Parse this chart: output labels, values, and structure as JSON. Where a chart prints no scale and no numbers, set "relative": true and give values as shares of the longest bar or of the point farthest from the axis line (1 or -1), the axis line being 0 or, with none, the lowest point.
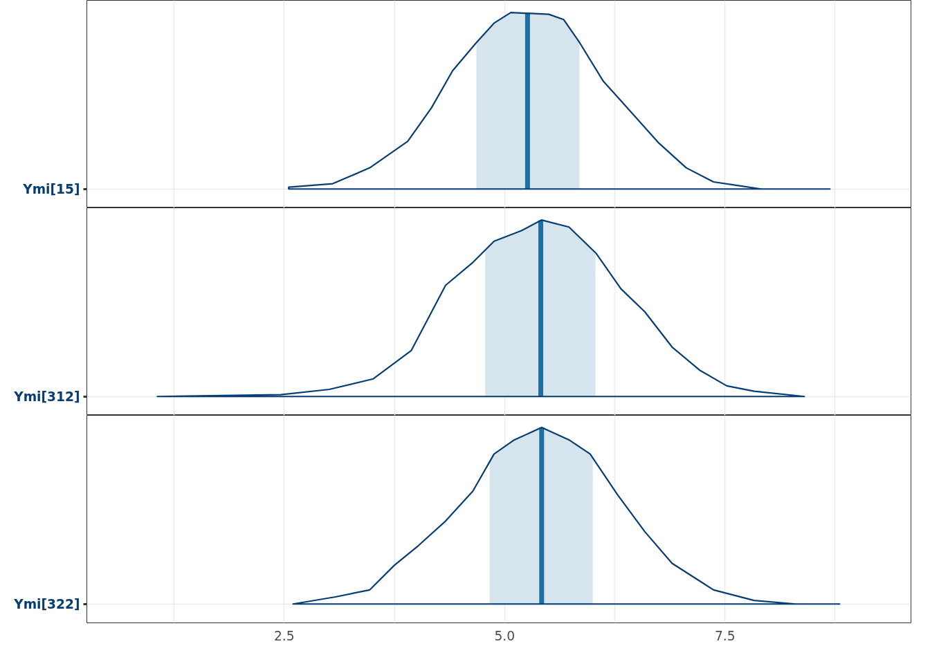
{
  "chart_data": [
    {
      "type": "area",
      "relative": true,
      "grid": true,
      "tick_labels": "y",
      "xlim": [
        0.26,
        9.61
      ],
      "xticks": [
        {
          "value": 1.25,
          "label": null
        },
        {
          "value": 2.5,
          "label": null
        },
        {
          "value": 3.75,
          "label": null
        },
        {
          "value": 5.0,
          "label": null
        },
        {
          "value": 6.25,
          "label": null
        },
        {
          "value": 7.5,
          "label": null
        },
        {
          "value": 8.75,
          "label": null
        }
      ],
      "series": [
        {
          "name": "Ymi[15]",
          "color": "#063d72",
          "x": [
            2.55,
            3.05,
            3.47,
            3.9,
            4.17,
            4.41,
            4.68,
            4.88,
            5.07,
            5.5,
            5.67,
            5.85,
            6.12,
            6.32,
            6.75,
            7.06,
            7.37,
            7.64,
            7.91,
            8.69
          ],
          "values": [
            0.01,
            0.03,
            0.12,
            0.27,
            0.46,
            0.67,
            0.83,
            0.94,
            1.0,
            0.99,
            0.96,
            0.83,
            0.61,
            0.5,
            0.26,
            0.12,
            0.04,
            0.02,
            0.0,
            0.0
          ]
        }
      ],
      "bands": [
        {
          "axis": "x",
          "from": 4.68,
          "to": 5.85,
          "color": "#d1e1ec"
        }
      ],
      "ref_lines": [
        {
          "axis": "x",
          "value": 5.26,
          "color": "#005b96"
        }
      ]
    },
    {
      "type": "area",
      "relative": true,
      "grid": true,
      "tick_labels": "y",
      "xlim": [
        0.26,
        9.61
      ],
      "xticks": [
        {
          "value": 1.25,
          "label": null
        },
        {
          "value": 2.5,
          "label": null
        },
        {
          "value": 3.75,
          "label": null
        },
        {
          "value": 5.0,
          "label": null
        },
        {
          "value": 6.25,
          "label": null
        },
        {
          "value": 7.5,
          "label": null
        },
        {
          "value": 8.75,
          "label": null
        }
      ],
      "series": [
        {
          "name": "Ymi[312]",
          "color": "#063d72",
          "x": [
            1.06,
            2.46,
            3.01,
            3.51,
            3.94,
            4.33,
            4.64,
            4.88,
            5.19,
            5.42,
            5.73,
            6.04,
            6.32,
            6.59,
            6.9,
            7.21,
            7.52,
            7.83,
            8.4
          ],
          "values": [
            0.0,
            0.01,
            0.04,
            0.1,
            0.26,
            0.63,
            0.76,
            0.88,
            0.94,
            1.0,
            0.96,
            0.81,
            0.61,
            0.48,
            0.28,
            0.15,
            0.06,
            0.03,
            0.0
          ]
        }
      ],
      "bands": [
        {
          "axis": "x",
          "from": 4.78,
          "to": 6.03,
          "color": "#d1e1ec"
        }
      ],
      "ref_lines": [
        {
          "axis": "x",
          "value": 5.41,
          "color": "#005b96"
        }
      ]
    },
    {
      "type": "area",
      "relative": true,
      "grid": true,
      "xlim": [
        0.26,
        9.61
      ],
      "xticks": [
        {
          "value": 1.25,
          "label": null
        },
        {
          "value": 2.5,
          "label": "2.5"
        },
        {
          "value": 3.75,
          "label": null
        },
        {
          "value": 5.0,
          "label": "5.0"
        },
        {
          "value": 6.25,
          "label": null
        },
        {
          "value": 7.5,
          "label": "7.5"
        },
        {
          "value": 8.75,
          "label": null
        }
      ],
      "series": [
        {
          "name": "Ymi[322]",
          "color": "#063d72",
          "x": [
            2.6,
            3.08,
            3.47,
            3.75,
            4.02,
            4.33,
            4.64,
            4.88,
            5.11,
            5.42,
            5.73,
            5.97,
            6.28,
            6.59,
            6.9,
            7.37,
            7.83,
            8.3,
            8.8
          ],
          "values": [
            0.0,
            0.04,
            0.08,
            0.22,
            0.33,
            0.47,
            0.64,
            0.85,
            0.93,
            1.0,
            0.93,
            0.85,
            0.62,
            0.41,
            0.23,
            0.08,
            0.02,
            0.0,
            0.0
          ]
        }
      ],
      "bands": [
        {
          "axis": "x",
          "from": 4.83,
          "to": 6.0,
          "color": "#d1e1ec"
        }
      ],
      "ref_lines": [
        {
          "axis": "x",
          "value": 5.42,
          "color": "#005b96"
        }
      ]
    }
  ]
}
